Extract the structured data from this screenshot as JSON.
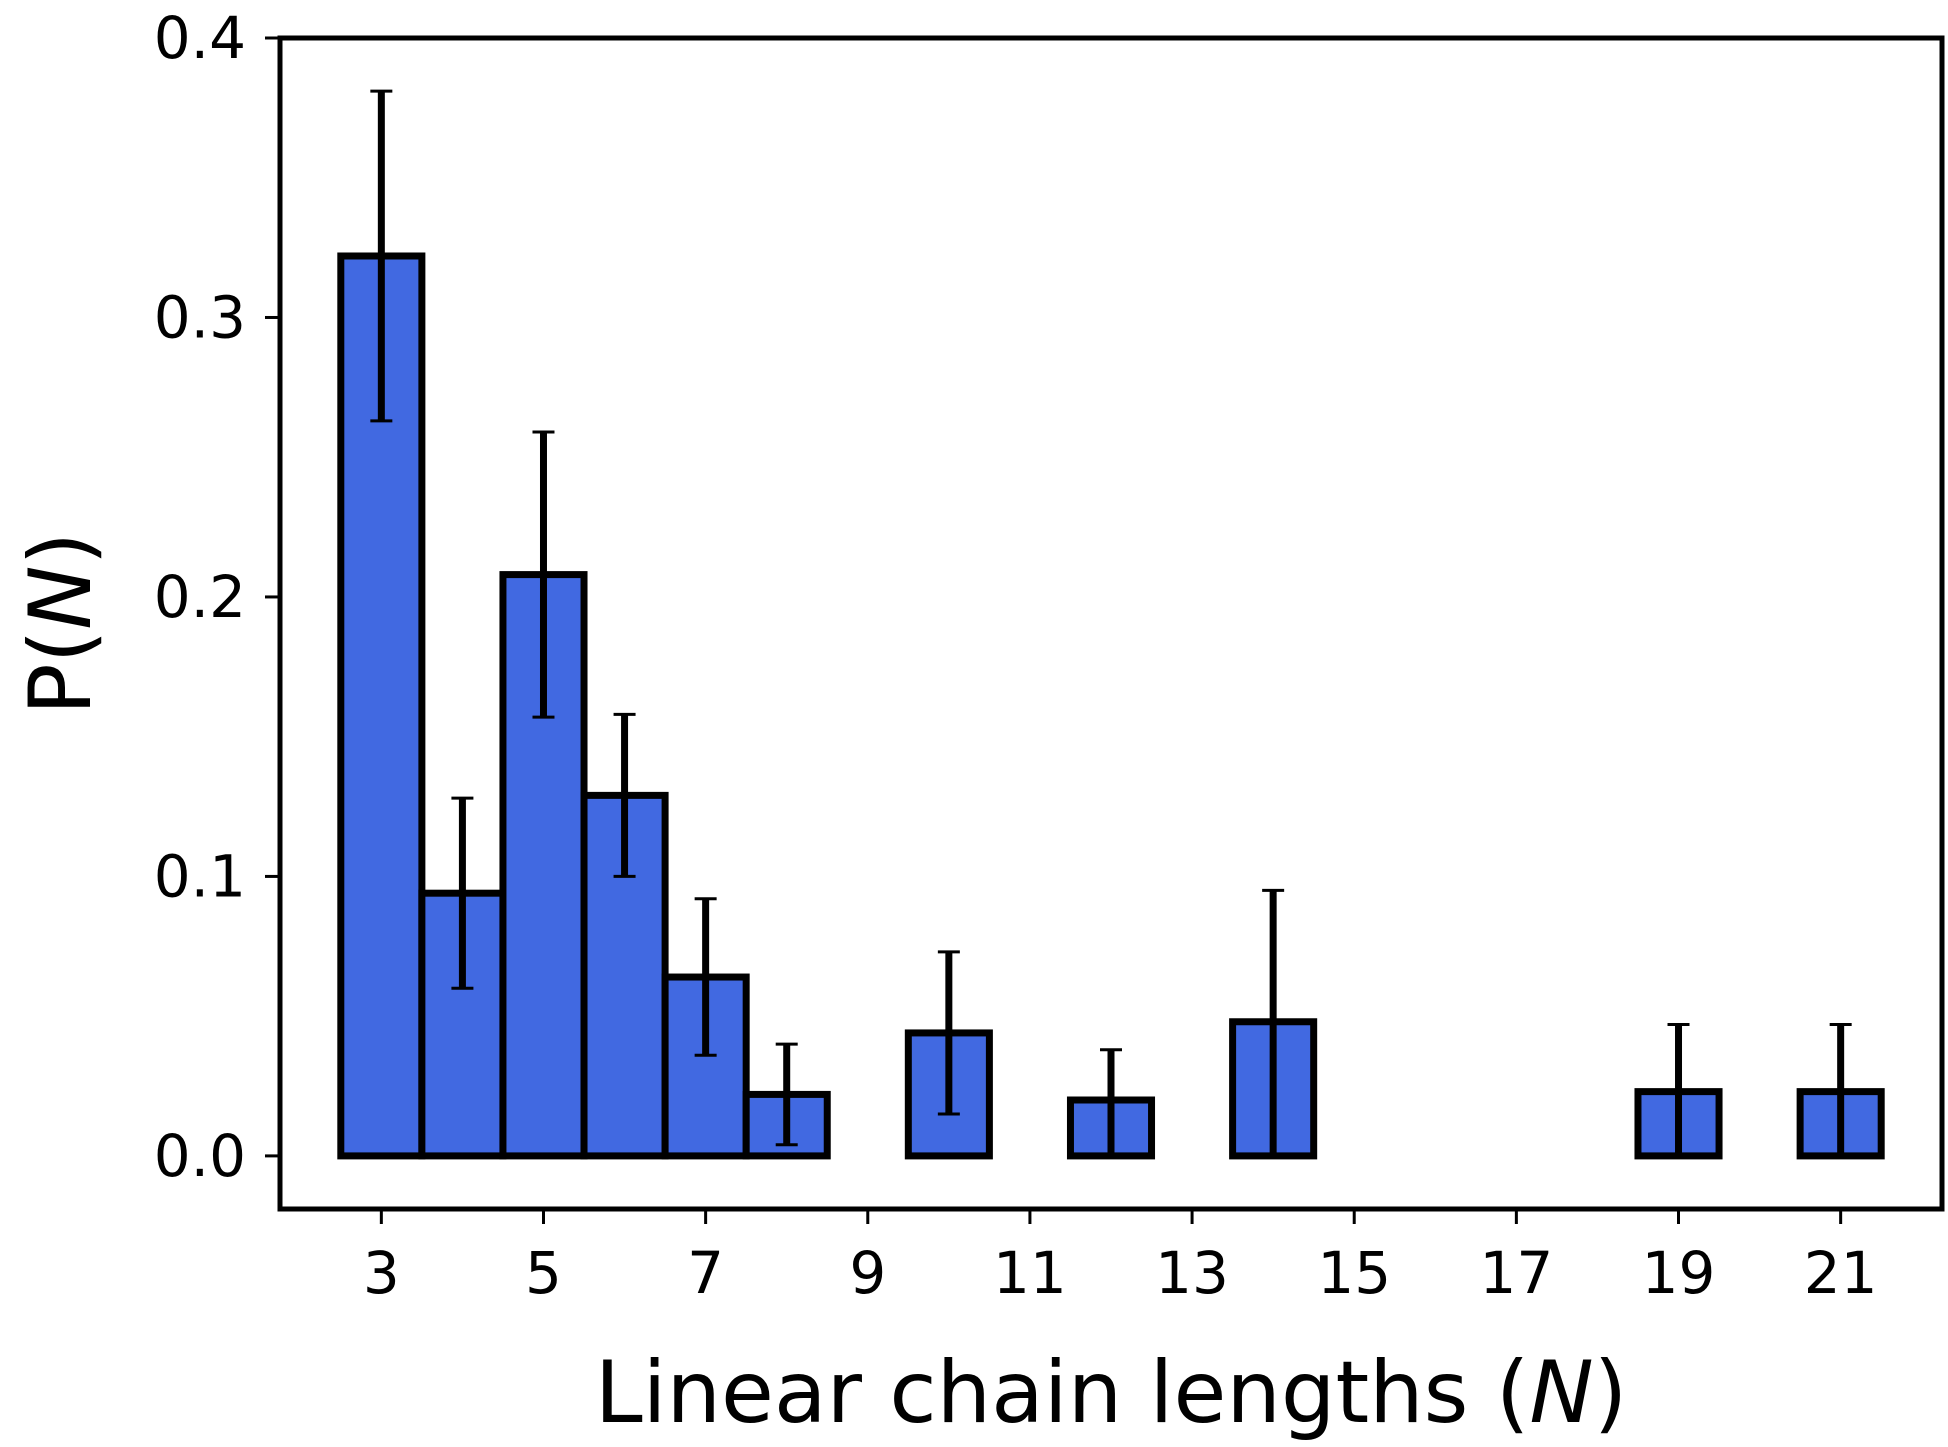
{
  "chart_data": {
    "type": "bar",
    "xlabel": {
      "prefix": "Linear chain lengths (",
      "variable": "N",
      "suffix": ")"
    },
    "ylabel": {
      "prefix": "P(",
      "variable": "N",
      "suffix": ")"
    },
    "xlim": [
      1.75,
      22.25
    ],
    "ylim": [
      -0.019,
      0.4
    ],
    "x_ticks": [
      3,
      5,
      7,
      9,
      11,
      13,
      15,
      17,
      19,
      21
    ],
    "y_ticks": [
      0.0,
      0.1,
      0.2,
      0.3,
      0.4
    ],
    "y_tick_labels": [
      "0.0",
      "0.1",
      "0.2",
      "0.3",
      "0.4"
    ],
    "grid": false,
    "legend": false,
    "bars": [
      {
        "x": 3,
        "value": 0.322,
        "err_low": 0.263,
        "err_high": 0.381
      },
      {
        "x": 4,
        "value": 0.094,
        "err_low": 0.06,
        "err_high": 0.128
      },
      {
        "x": 5,
        "value": 0.208,
        "err_low": 0.157,
        "err_high": 0.259
      },
      {
        "x": 6,
        "value": 0.129,
        "err_low": 0.1,
        "err_high": 0.158
      },
      {
        "x": 7,
        "value": 0.064,
        "err_low": 0.036,
        "err_high": 0.092
      },
      {
        "x": 8,
        "value": 0.022,
        "err_low": 0.004,
        "err_high": 0.04
      },
      {
        "x": 9,
        "value": 0.0,
        "err_low": null,
        "err_high": null
      },
      {
        "x": 10,
        "value": 0.044,
        "err_low": 0.015,
        "err_high": 0.073
      },
      {
        "x": 11,
        "value": 0.0,
        "err_low": null,
        "err_high": null
      },
      {
        "x": 12,
        "value": 0.02,
        "err_low": 0.0,
        "err_high": 0.038
      },
      {
        "x": 13,
        "value": 0.0,
        "err_low": null,
        "err_high": null
      },
      {
        "x": 14,
        "value": 0.048,
        "err_low": 0.0,
        "err_high": 0.095
      },
      {
        "x": 15,
        "value": 0.0,
        "err_low": null,
        "err_high": null
      },
      {
        "x": 16,
        "value": 0.0,
        "err_low": null,
        "err_high": null
      },
      {
        "x": 17,
        "value": 0.0,
        "err_low": null,
        "err_high": null
      },
      {
        "x": 18,
        "value": 0.0,
        "err_low": null,
        "err_high": null
      },
      {
        "x": 19,
        "value": 0.023,
        "err_low": 0.0,
        "err_high": 0.047
      },
      {
        "x": 20,
        "value": 0.0,
        "err_low": null,
        "err_high": null
      },
      {
        "x": 21,
        "value": 0.023,
        "err_low": 0.0,
        "err_high": 0.047
      }
    ],
    "colors": {
      "bar_fill": "#4169e1",
      "bar_edge": "#000000",
      "error_bar": "#000000",
      "axes": "#000000"
    }
  }
}
